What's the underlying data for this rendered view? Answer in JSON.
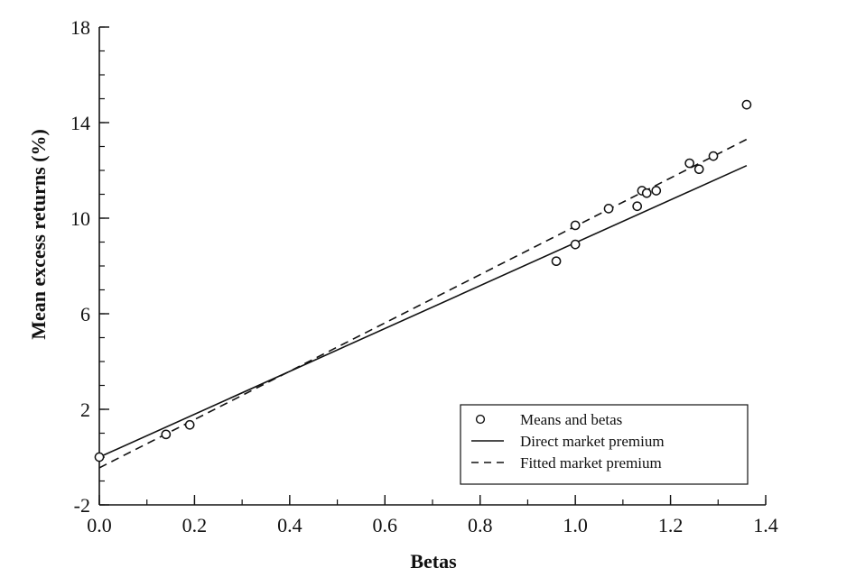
{
  "chart_data": {
    "type": "scatter",
    "xlabel": "Betas",
    "ylabel": "Mean excess returns (%)",
    "xlim": [
      0.0,
      1.4
    ],
    "ylim": [
      -2,
      18
    ],
    "x_ticks": [
      "0.0",
      "0.2",
      "0.4",
      "0.6",
      "0.8",
      "1.0",
      "1.2",
      "1.4"
    ],
    "x_tick_values": [
      0.0,
      0.2,
      0.4,
      0.6,
      0.8,
      1.0,
      1.2,
      1.4
    ],
    "y_ticks": [
      "-2",
      "2",
      "6",
      "10",
      "14",
      "18"
    ],
    "y_tick_values": [
      -2,
      2,
      6,
      10,
      14,
      18
    ],
    "x_minor_step": 0.1,
    "y_minor_step": 1,
    "grid": false,
    "legend_position": "bottom-right",
    "series": [
      {
        "name": "Means and betas",
        "kind": "scatter",
        "marker": "open-circle",
        "points": [
          {
            "x": 0.0,
            "y": 0.0
          },
          {
            "x": 0.14,
            "y": 0.95
          },
          {
            "x": 0.19,
            "y": 1.35
          },
          {
            "x": 0.96,
            "y": 8.2
          },
          {
            "x": 1.0,
            "y": 8.9
          },
          {
            "x": 1.0,
            "y": 9.7
          },
          {
            "x": 1.07,
            "y": 10.4
          },
          {
            "x": 1.13,
            "y": 10.5
          },
          {
            "x": 1.14,
            "y": 11.15
          },
          {
            "x": 1.15,
            "y": 11.05
          },
          {
            "x": 1.17,
            "y": 11.15
          },
          {
            "x": 1.24,
            "y": 12.3
          },
          {
            "x": 1.26,
            "y": 12.05
          },
          {
            "x": 1.29,
            "y": 12.6
          },
          {
            "x": 1.36,
            "y": 14.75
          }
        ]
      },
      {
        "name": "Direct market premium",
        "kind": "line",
        "dash": "solid",
        "points": [
          {
            "x": 0.0,
            "y": 0.0
          },
          {
            "x": 1.36,
            "y": 12.2
          }
        ]
      },
      {
        "name": "Fitted market premium",
        "kind": "line",
        "dash": "dashed",
        "points": [
          {
            "x": 0.0,
            "y": -0.45
          },
          {
            "x": 1.36,
            "y": 13.3
          }
        ]
      }
    ]
  }
}
